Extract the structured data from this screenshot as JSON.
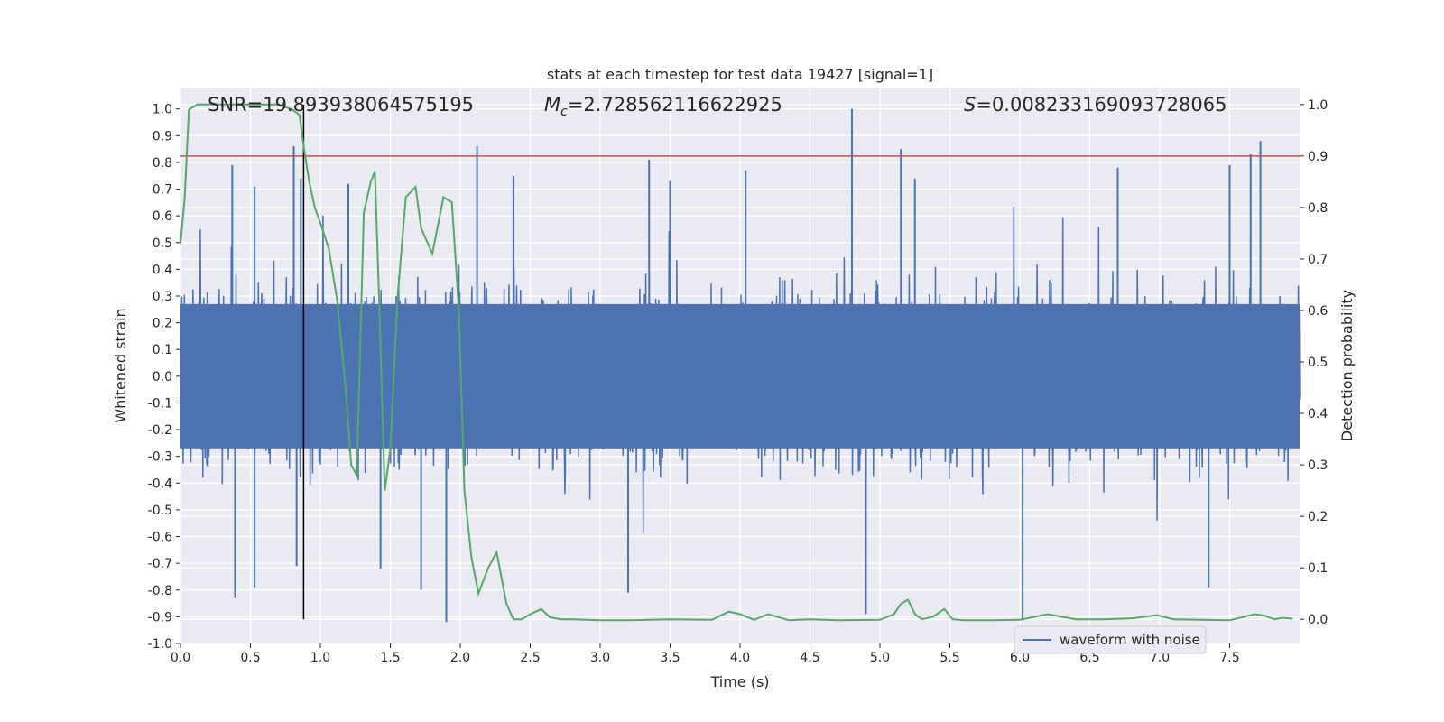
{
  "chart_data": {
    "type": "line",
    "title": "stats at each timestep for test data 19427 [signal=1]",
    "xlabel": "Time (s)",
    "ylabel": "Whitened strain",
    "y2label": "Detection probability",
    "xlim": [
      0.0,
      8.0
    ],
    "ylim": [
      -1.0,
      1.08
    ],
    "y2lim": [
      -0.047,
      1.033
    ],
    "x_ticks": [
      "0.0",
      "0.5",
      "1.0",
      "1.5",
      "2.0",
      "2.5",
      "3.0",
      "3.5",
      "4.0",
      "4.5",
      "5.0",
      "5.5",
      "6.0",
      "6.5",
      "7.0",
      "7.5"
    ],
    "y_ticks": [
      "1.0",
      "0.9",
      "0.8",
      "0.7",
      "0.6",
      "0.5",
      "0.4",
      "0.3",
      "0.2",
      "0.1",
      "0.0",
      "-0.1",
      "-0.2",
      "-0.3",
      "-0.4",
      "-0.5",
      "-0.6",
      "-0.7",
      "-0.8",
      "-0.9",
      "-1.0"
    ],
    "y2_ticks": [
      "1.0",
      "0.9",
      "0.8",
      "0.7",
      "0.6",
      "0.5",
      "0.4",
      "0.3",
      "0.2",
      "0.1",
      "0.0"
    ],
    "annotations": {
      "snr_prefix": "SNR=",
      "snr_value": "19.893938064575195",
      "mc_symbol": "M",
      "mc_subscript": "c",
      "mc_value": "=2.728562116622925",
      "s_symbol": "S",
      "s_value": "=0.008233169093728065"
    },
    "threshold_line": {
      "axis": "right",
      "value": 0.9,
      "color": "#c44e52"
    },
    "event_time": 0.88,
    "legend": {
      "label": "waveform with noise",
      "placement": "lower-right"
    },
    "series": [
      {
        "name": "waveform with noise",
        "axis": "left",
        "color": "#4c72b0",
        "kind": "dense-noise",
        "typical_range": [
          -0.42,
          0.42
        ],
        "peaks": [
          {
            "x": 0.37,
            "y": 0.79
          },
          {
            "x": 0.39,
            "y": -0.83
          },
          {
            "x": 0.53,
            "y": 0.71
          },
          {
            "x": 0.53,
            "y": -0.79
          },
          {
            "x": 0.81,
            "y": 0.86
          },
          {
            "x": 0.83,
            "y": -0.71
          },
          {
            "x": 0.86,
            "y": 0.74
          },
          {
            "x": 1.2,
            "y": 0.72
          },
          {
            "x": 1.43,
            "y": -0.72
          },
          {
            "x": 1.72,
            "y": -0.8
          },
          {
            "x": 1.9,
            "y": -0.92
          },
          {
            "x": 2.12,
            "y": 0.86
          },
          {
            "x": 2.38,
            "y": 0.75
          },
          {
            "x": 3.2,
            "y": -0.81
          },
          {
            "x": 3.35,
            "y": 0.81
          },
          {
            "x": 3.5,
            "y": 0.73
          },
          {
            "x": 4.04,
            "y": 0.77
          },
          {
            "x": 4.8,
            "y": 1.0
          },
          {
            "x": 4.9,
            "y": -0.89
          },
          {
            "x": 5.15,
            "y": 0.85
          },
          {
            "x": 5.25,
            "y": 0.74
          },
          {
            "x": 6.02,
            "y": -0.91
          },
          {
            "x": 6.7,
            "y": 0.78
          },
          {
            "x": 7.35,
            "y": -0.79
          },
          {
            "x": 7.5,
            "y": 0.79
          },
          {
            "x": 7.65,
            "y": 0.83
          },
          {
            "x": 7.72,
            "y": 0.88
          }
        ]
      },
      {
        "name": "detection probability",
        "axis": "right",
        "color": "#55a868",
        "x": [
          0.0,
          0.03,
          0.06,
          0.12,
          0.2,
          0.3,
          0.4,
          0.5,
          0.6,
          0.7,
          0.8,
          0.85,
          0.88,
          0.92,
          0.96,
          1.0,
          1.06,
          1.12,
          1.18,
          1.22,
          1.26,
          1.31,
          1.36,
          1.39,
          1.42,
          1.46,
          1.5,
          1.55,
          1.61,
          1.68,
          1.72,
          1.8,
          1.88,
          1.94,
          1.99,
          2.03,
          2.08,
          2.13,
          2.2,
          2.26,
          2.33,
          2.38,
          2.44,
          2.5,
          2.58,
          2.64,
          2.72,
          2.8,
          3.0,
          3.2,
          3.5,
          3.8,
          3.92,
          4.0,
          4.1,
          4.2,
          4.35,
          4.5,
          4.7,
          5.0,
          5.1,
          5.15,
          5.2,
          5.25,
          5.3,
          5.38,
          5.46,
          5.52,
          5.6,
          5.8,
          6.0,
          6.2,
          6.4,
          6.6,
          6.8,
          6.98,
          7.1,
          7.3,
          7.5,
          7.68,
          7.75,
          7.82,
          7.88,
          7.95
        ],
        "y": [
          0.73,
          0.82,
          0.99,
          1.0,
          1.0,
          1.0,
          1.0,
          1.0,
          1.0,
          1.0,
          0.99,
          0.98,
          0.92,
          0.85,
          0.8,
          0.77,
          0.72,
          0.62,
          0.45,
          0.3,
          0.28,
          0.79,
          0.85,
          0.87,
          0.62,
          0.25,
          0.33,
          0.62,
          0.82,
          0.84,
          0.76,
          0.71,
          0.82,
          0.81,
          0.6,
          0.25,
          0.12,
          0.05,
          0.1,
          0.13,
          0.03,
          0.0,
          0.0,
          0.01,
          0.02,
          0.004,
          0.0,
          0.0,
          -0.002,
          -0.002,
          0.0,
          -0.001,
          0.015,
          0.01,
          -0.001,
          0.01,
          -0.002,
          0.0,
          -0.002,
          -0.001,
          0.01,
          0.03,
          0.038,
          0.01,
          0.0,
          0.005,
          0.02,
          0.0,
          -0.002,
          -0.002,
          -0.001,
          0.01,
          0.0,
          0.0,
          0.002,
          0.008,
          0.0,
          -0.001,
          -0.002,
          0.01,
          0.007,
          0.0,
          0.003,
          0.001
        ]
      }
    ]
  }
}
